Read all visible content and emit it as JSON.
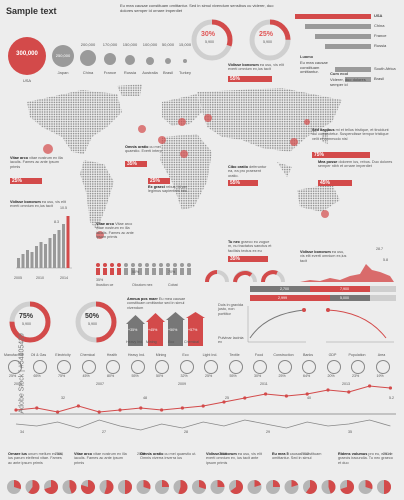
{
  "title": "Sample text",
  "top_text": "Eu mea causae constituam omittantur. Sed in simul vivendum sensibus cu viderer, duo dolores semper id ornare imperdiet",
  "bubbles": [
    {
      "value": "300,000",
      "label": "USA"
    },
    {
      "value": "250,000",
      "label": "Japan"
    },
    {
      "value": "200,000",
      "label": "China"
    },
    {
      "value": "170,000",
      "label": "France"
    },
    {
      "value": "150,000",
      "label": "Russia"
    },
    {
      "value": "100,000",
      "label": "Australia"
    },
    {
      "value": "50,000",
      "label": "Brasil"
    },
    {
      "value": "15,000",
      "label": "Turkey"
    }
  ],
  "gauge_top": [
    {
      "pct": "30%",
      "value": "5,900"
    },
    {
      "pct": "25%",
      "value": "5,900"
    }
  ],
  "country_bars": [
    {
      "label": "USA",
      "value": "45%"
    },
    {
      "label": "China",
      "value": "40%"
    },
    {
      "label": "France",
      "value": "35%"
    },
    {
      "label": "Russia",
      "value": "30%"
    },
    {
      "label": "South Africa",
      "value": "25%"
    },
    {
      "label": "Brasil",
      "value": "20%"
    }
  ],
  "luamo": {
    "title": "Luamo",
    "text": "Eu mea causae constituam omittantur.",
    "sub": "Cum ecol",
    "sub2": "Viderer, duo dolores semper id"
  },
  "map_callouts": [
    {
      "title": "Vidisse bonorum",
      "text": "ea usu, vis elit everti omnium ex,ius tacit"
    },
    {
      "title": "Omnis oratio",
      "text": "cu mei quaestio. Everti interp"
    },
    {
      "title": "Sed dapibus",
      "text": "mi et tellus tristique, et tincidunt dui consectetur. Suspendisse tempor tristique velit et commodo nisl"
    },
    {
      "title": "Vitae arco",
      "text": "vitae nostrum ex illa iaculis. Fames ac ante ipsum primis"
    },
    {
      "title": "Ex graeci",
      "text": "rebus. Id per legimus sapientem nec."
    },
    {
      "title": "Cibo oratio",
      "text": "deferuntur ea, ea pro praesent oratio."
    },
    {
      "title": "Mea posse",
      "text": "dolorem ius, rebus. Duo dolores semper nibh et ornare imperdiet"
    },
    {
      "title": "Vidisse bonorum",
      "text": "ea usu, vis elit everti omnium ex,ius tacit"
    },
    {
      "title": "Tu nec",
      "text": "graeco eu zugue m, nu tractatos sanctus et facilisis tectus ex eu"
    }
  ],
  "map_pcts": [
    "55%",
    "35%",
    "75%",
    "25%",
    "55%",
    "25%",
    "65%",
    "45%",
    "35%"
  ],
  "column_chart": {
    "title": "Vidisse bonorum",
    "text": "ea usu, vis elit everti omnium ex,ius tacit",
    "ticks": [
      "2005",
      "2010",
      "2014"
    ],
    "values": [
      "10.5",
      "8.3",
      "7.1"
    ]
  },
  "people": [
    {
      "pct": "35%",
      "label": "Ibustion ce"
    },
    {
      "pct": "50%",
      "label": "Oloutom nex"
    },
    {
      "pct": "70%",
      "label": "Cobat"
    }
  ],
  "vitae_block": {
    "title": "Vitae arco",
    "text": "Vitae arco vitae nostrum ex illa iaculis. Fames ac ante ipsum primis"
  },
  "circle_pcts": [
    {
      "pct": "75%",
      "value": "5,900"
    },
    {
      "pct": "50%",
      "value": "5,900"
    }
  ],
  "amnua": {
    "title": "Amnua pos maer",
    "text": "Eu mea causae constituam omittantur sed in simul vivendum"
  },
  "arrow_bars": [
    {
      "label": "Heavy Ind.",
      "value": "+35%"
    },
    {
      "label": "Mining",
      "value": "+45%"
    },
    {
      "label": "Eco",
      "value": "+50%"
    },
    {
      "label": "Chemical",
      "value": "+57%"
    }
  ],
  "progress_rows": [
    {
      "label": "Duis in gravida justo, non porttitor",
      "v": [
        "2,700",
        "7,900"
      ]
    },
    {
      "label": "Pulvinar lacinia ex",
      "v": [
        "2,999",
        "5,000"
      ]
    }
  ],
  "line_chart_right": {
    "title": "Vidisse bonorum",
    "text": "ea usu, vis elit everti omnium ex,ius tacit",
    "values": [
      "28.7",
      "5.8"
    ]
  },
  "sectors": [
    "Manufacture",
    "Oil & Gas",
    "Electricity",
    "Chemical",
    "Health",
    "Heavy Ind.",
    "Mining",
    "Eco",
    "Light Ind.",
    "Textile",
    "Food",
    "Construction",
    "Banks",
    "GDP",
    "Population",
    "Area"
  ],
  "sector_pcts": [
    "25%",
    "65%",
    "75%",
    "45%",
    "80%",
    "55%",
    "50%",
    "32%",
    "25%",
    "55%",
    "30%",
    "25%",
    "64%",
    "20%",
    "23%",
    "19%"
  ],
  "timeline_years": [
    "2005",
    "2006",
    "2007",
    "2008",
    "2009",
    "2010",
    "2011",
    "2012",
    "2013",
    "2014"
  ],
  "timeline_values": [
    "34",
    "32",
    "27",
    "48",
    "28",
    "25",
    "29",
    "40",
    "35",
    "5.2"
  ],
  "bottom_notes": [
    {
      "title": "Ornare ius",
      "text": "unum mellum ex ius, ius parum eleifend vitae. Fames ac ante ipsum primis"
    },
    {
      "title": "Vitae arco",
      "text": "vitae nostrum ex illa iaculis. Fames ac ante ipsum primis"
    },
    {
      "title": "Omnis oratio",
      "text": "cu mei quaestio ut. Omnis viverra inverra ius"
    },
    {
      "title": "Vidisse bonorum",
      "text": "ea usu, vis elit everti omnium ex, ius tacit ante ipsum primis"
    },
    {
      "title": "Eu mea 5",
      "text": "causae constituam omittantur. Sed in simul"
    },
    {
      "title": "Ridens volumus",
      "text": "pro eu, eos ne graecis iracundia. Tu nec graeco et duo"
    }
  ],
  "watermark": "Adobe Stock | #54405429",
  "colors": {
    "accent": "#d34a4a",
    "gray": "#9a9a9a",
    "light": "#cfcfcf"
  }
}
